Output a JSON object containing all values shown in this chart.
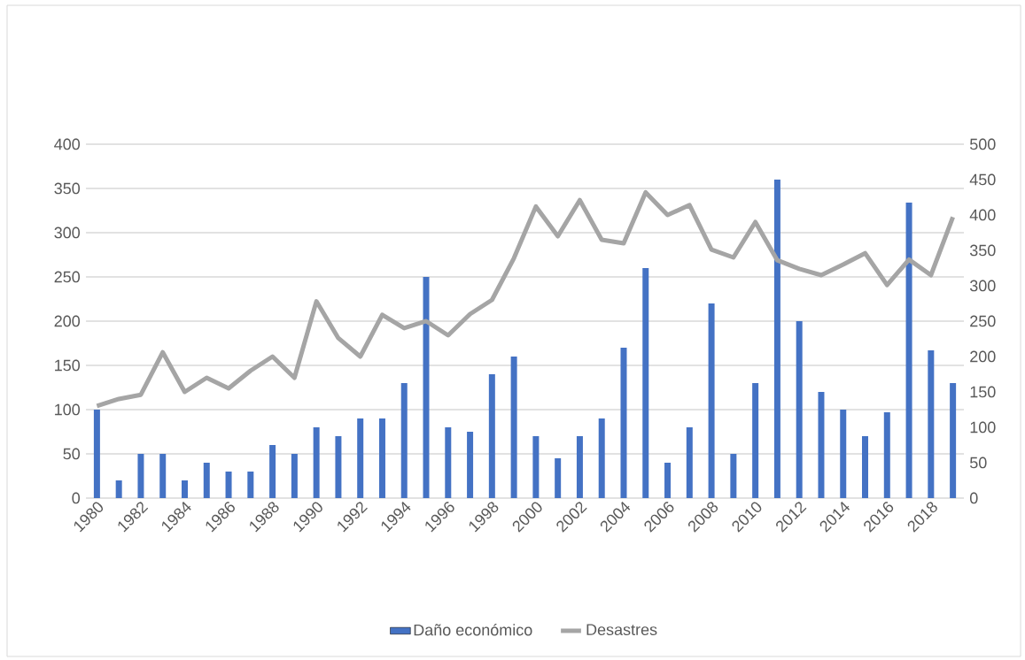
{
  "chart_data": {
    "type": "bar",
    "categories": [
      "1980",
      null,
      "1982",
      null,
      "1984",
      null,
      "1986",
      null,
      "1988",
      null,
      "1990",
      null,
      "1992",
      null,
      "1994",
      null,
      "1996",
      null,
      "1998",
      null,
      "2000",
      null,
      "2002",
      null,
      "2004",
      null,
      "2006",
      null,
      "2008",
      null,
      "2010",
      null,
      "2012",
      null,
      "2014",
      null,
      "2016",
      null,
      "2018",
      null
    ],
    "series": [
      {
        "name": "Daño económico",
        "color": "#4472c4",
        "values": [
          100,
          20,
          50,
          50,
          20,
          40,
          30,
          30,
          60,
          50,
          80,
          70,
          90,
          90,
          130,
          250,
          80,
          75,
          140,
          160,
          70,
          45,
          70,
          90,
          170,
          260,
          40,
          80,
          220,
          50,
          130,
          360,
          200,
          120,
          100,
          70,
          97,
          334,
          167,
          130
        ]
      },
      {
        "name": "Desastres",
        "type": "line",
        "axis": "y2",
        "color": "#a5a5a5",
        "values": [
          130,
          140,
          146,
          206,
          150,
          170,
          155,
          180,
          200,
          170,
          278,
          226,
          200,
          259,
          240,
          250,
          230,
          260,
          280,
          339,
          412,
          370,
          421,
          365,
          360,
          432,
          400,
          414,
          351,
          340,
          390,
          336,
          324,
          315,
          330,
          346,
          301,
          337,
          315,
          397
        ]
      }
    ],
    "ylim": [
      0,
      400
    ],
    "yticks": [
      0,
      50,
      100,
      150,
      200,
      250,
      300,
      350,
      400
    ],
    "y2lim": [
      0,
      500
    ],
    "y2ticks": [
      0,
      50,
      100,
      150,
      200,
      250,
      300,
      350,
      400,
      450,
      500
    ],
    "grid": "y",
    "legend": "bottom"
  }
}
